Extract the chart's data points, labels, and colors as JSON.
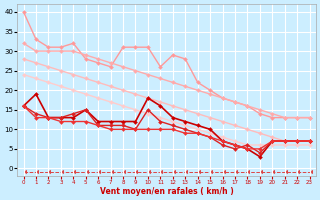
{
  "title": "",
  "xlabel": "Vent moyen/en rafales ( km/h )",
  "ylabel": "",
  "bg_color": "#cceeff",
  "grid_color": "#ffffff",
  "xlim": [
    -0.5,
    23.5
  ],
  "ylim": [
    -2,
    42
  ],
  "yticks": [
    0,
    5,
    10,
    15,
    20,
    25,
    30,
    35,
    40
  ],
  "xticks": [
    0,
    1,
    2,
    3,
    4,
    5,
    6,
    7,
    8,
    9,
    10,
    11,
    12,
    13,
    14,
    15,
    16,
    17,
    18,
    19,
    20,
    21,
    22,
    23
  ],
  "lines": [
    {
      "x": [
        0,
        1,
        2,
        3,
        4,
        5,
        6,
        7,
        8,
        9,
        10,
        11,
        12,
        13,
        14,
        15,
        16,
        17,
        18,
        19,
        20,
        21,
        22,
        23
      ],
      "y": [
        40,
        33,
        31,
        31,
        32,
        28,
        27,
        26,
        31,
        31,
        31,
        26,
        29,
        28,
        22,
        20,
        18,
        17,
        16,
        14,
        13,
        13,
        13,
        13
      ],
      "color": "#ff9999",
      "marker": "D",
      "markersize": 2,
      "linewidth": 1.0,
      "linestyle": "solid",
      "zorder": 2
    },
    {
      "x": [
        0,
        1,
        2,
        3,
        4,
        5,
        6,
        7,
        8,
        9,
        10,
        11,
        12,
        13,
        14,
        15,
        16,
        17,
        18,
        19,
        20,
        21,
        22,
        23
      ],
      "y": [
        32,
        30,
        30,
        30,
        30,
        29,
        28,
        27,
        26,
        25,
        24,
        23,
        22,
        21,
        20,
        19,
        18,
        17,
        16,
        15,
        14,
        13,
        13,
        13
      ],
      "color": "#ffaaaa",
      "marker": "D",
      "markersize": 2,
      "linewidth": 1.0,
      "linestyle": "solid",
      "zorder": 2
    },
    {
      "x": [
        0,
        1,
        2,
        3,
        4,
        5,
        6,
        7,
        8,
        9,
        10,
        11,
        12,
        13,
        14,
        15,
        16,
        17,
        18,
        19,
        20,
        21,
        22,
        23
      ],
      "y": [
        28,
        27,
        26,
        25,
        24,
        23,
        22,
        21,
        20,
        19,
        18,
        17,
        16,
        15,
        14,
        13,
        12,
        11,
        10,
        9,
        8,
        7,
        7,
        7
      ],
      "color": "#ffbbbb",
      "marker": "D",
      "markersize": 2,
      "linewidth": 1.0,
      "linestyle": "solid",
      "zorder": 2
    },
    {
      "x": [
        0,
        1,
        2,
        3,
        4,
        5,
        6,
        7,
        8,
        9,
        10,
        11,
        12,
        13,
        14,
        15,
        16,
        17,
        18,
        19,
        20,
        21,
        22,
        23
      ],
      "y": [
        24,
        23,
        22,
        21,
        20,
        19,
        18,
        17,
        16,
        15,
        14,
        13,
        12,
        11,
        10,
        9,
        8,
        7,
        6,
        6,
        6,
        6,
        6,
        6
      ],
      "color": "#ffcccc",
      "marker": "D",
      "markersize": 2,
      "linewidth": 1.0,
      "linestyle": "solid",
      "zorder": 2
    },
    {
      "x": [
        0,
        1,
        2,
        3,
        4,
        5,
        6,
        7,
        8,
        9,
        10,
        11,
        12,
        13,
        14,
        15,
        16,
        17,
        18,
        19,
        20,
        21,
        22,
        23
      ],
      "y": [
        16,
        19,
        13,
        13,
        13,
        15,
        12,
        12,
        12,
        12,
        18,
        16,
        13,
        12,
        11,
        10,
        7,
        6,
        5,
        3,
        7,
        7,
        7,
        7
      ],
      "color": "#cc0000",
      "marker": "D",
      "markersize": 2,
      "linewidth": 1.2,
      "linestyle": "solid",
      "zorder": 3
    },
    {
      "x": [
        0,
        1,
        2,
        3,
        4,
        5,
        6,
        7,
        8,
        9,
        10,
        11,
        12,
        13,
        14,
        15,
        16,
        17,
        18,
        19,
        20,
        21,
        22,
        23
      ],
      "y": [
        16,
        14,
        13,
        13,
        14,
        15,
        11,
        11,
        11,
        10,
        15,
        12,
        11,
        10,
        9,
        8,
        6,
        5,
        6,
        4,
        7,
        7,
        7,
        7
      ],
      "color": "#dd2222",
      "marker": "D",
      "markersize": 2,
      "linewidth": 1.0,
      "linestyle": "solid",
      "zorder": 3
    },
    {
      "x": [
        0,
        1,
        2,
        3,
        4,
        5,
        6,
        7,
        8,
        9,
        10,
        11,
        12,
        13,
        14,
        15,
        16,
        17,
        18,
        19,
        20,
        21,
        22,
        23
      ],
      "y": [
        16,
        13,
        13,
        12,
        12,
        12,
        11,
        10,
        10,
        10,
        10,
        10,
        10,
        9,
        9,
        8,
        7,
        6,
        5,
        5,
        7,
        7,
        7,
        7
      ],
      "color": "#ee3333",
      "marker": "D",
      "markersize": 2,
      "linewidth": 1.0,
      "linestyle": "solid",
      "zorder": 3
    },
    {
      "x": [
        0,
        1,
        2,
        3,
        4,
        5,
        6,
        7,
        8,
        9,
        10,
        11,
        12,
        13,
        14,
        15,
        16,
        17,
        18,
        19,
        20,
        21,
        22,
        23
      ],
      "y": [
        -1,
        -1,
        -1,
        -1,
        -1,
        -1,
        -1,
        -1,
        -1,
        -1,
        -1,
        -1,
        -1,
        -1,
        -1,
        -1,
        -1,
        -1,
        -1,
        -1,
        -1,
        -1,
        -1,
        -1
      ],
      "color": "#dd4444",
      "marker": 4,
      "markersize": 3,
      "linewidth": 0.7,
      "linestyle": "dashed",
      "zorder": 1
    }
  ]
}
